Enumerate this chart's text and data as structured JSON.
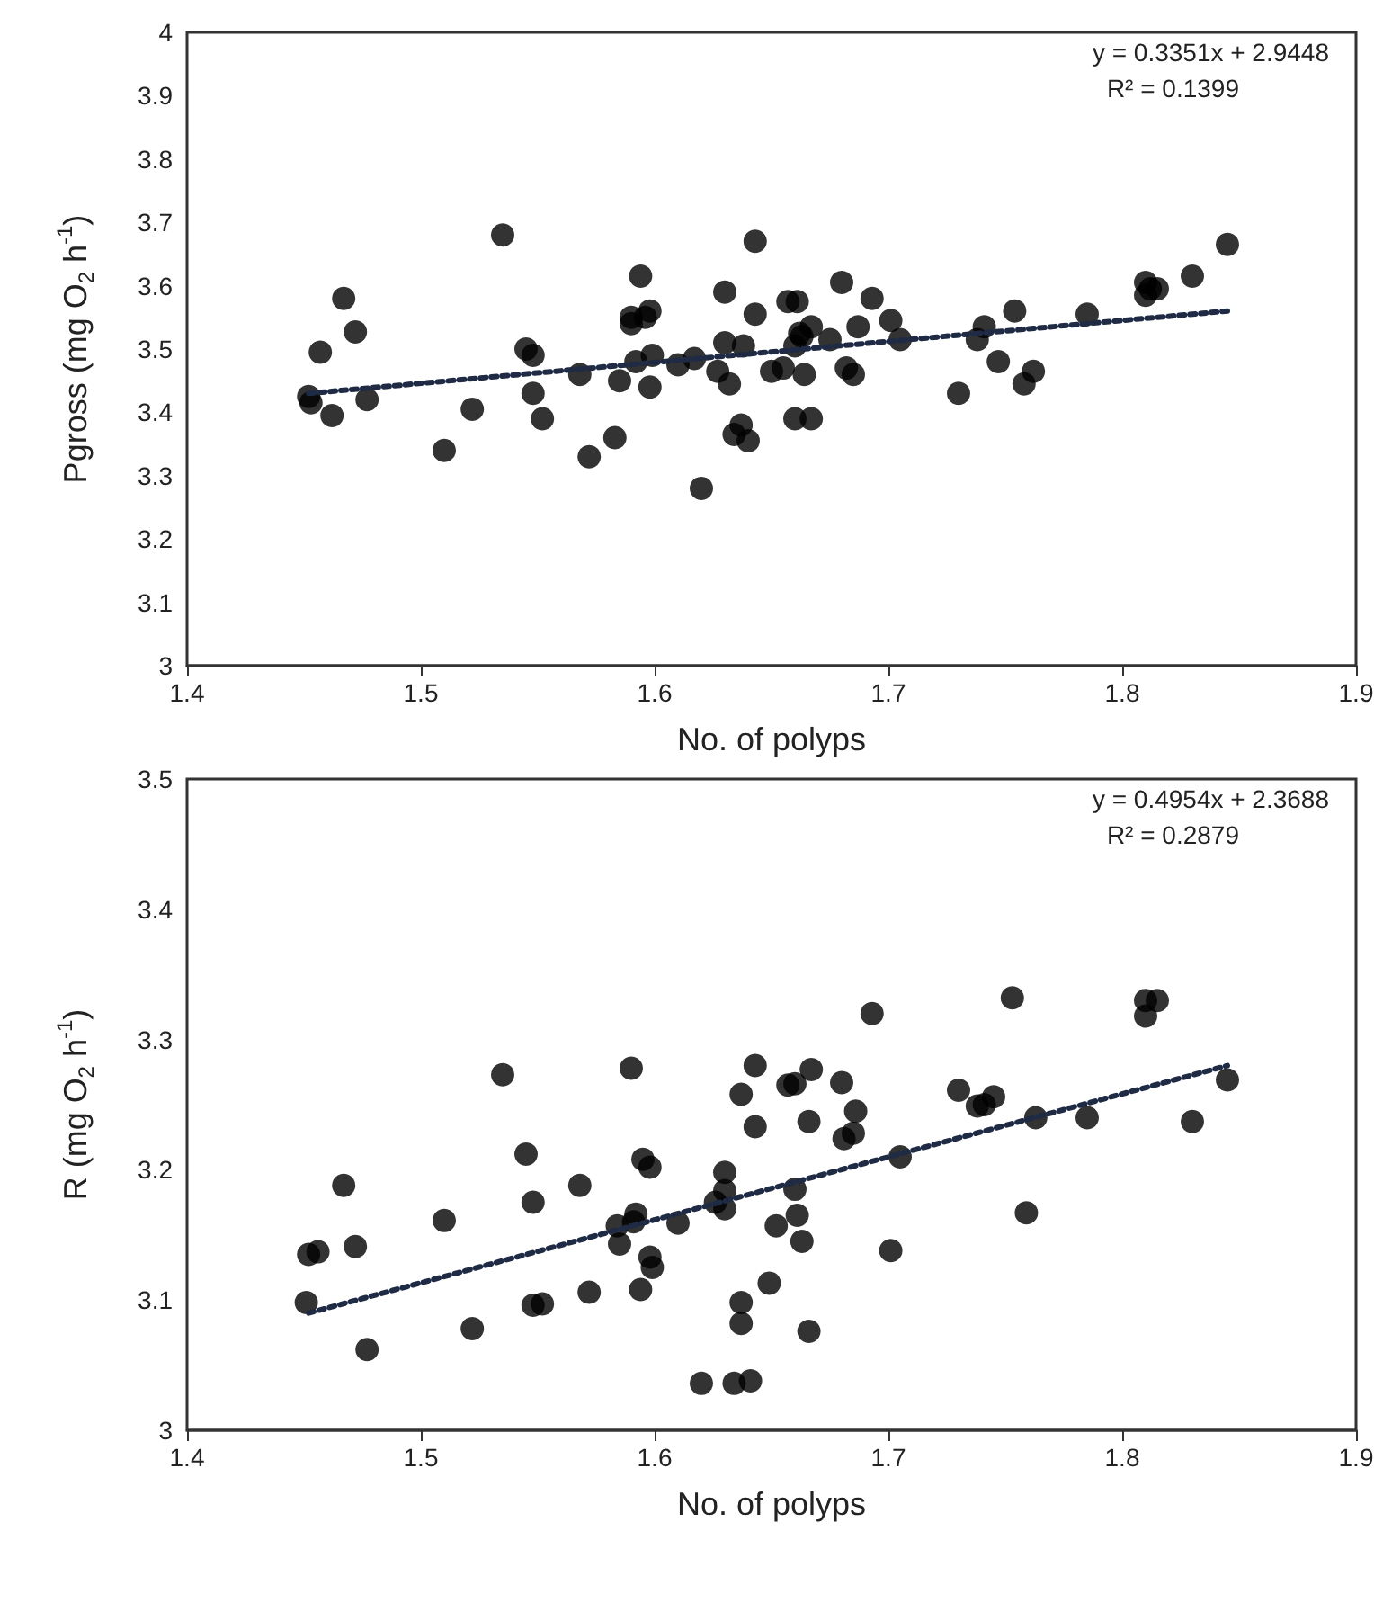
{
  "chart_data": [
    {
      "type": "scatter",
      "xlabel": "No. of polyps",
      "ylabel": "Pgross (mg O$_{2}$ h$^{-1}$)",
      "xlim": [
        1.4,
        1.9
      ],
      "xticks": [
        1.4,
        1.5,
        1.6,
        1.7,
        1.8,
        1.9
      ],
      "ylim": [
        3,
        4
      ],
      "yticks": [
        3,
        3.1,
        3.2,
        3.3,
        3.4,
        3.5,
        3.6,
        3.7,
        3.8,
        3.9,
        4
      ],
      "grid": false,
      "annotations": [
        "y = 0.3351x + 2.9448",
        "R² = 0.1399"
      ],
      "series": [
        {
          "marker": "circle",
          "color": "#000000",
          "x": [
            1.452,
            1.453,
            1.457,
            1.462,
            1.467,
            1.472,
            1.477,
            1.51,
            1.522,
            1.535,
            1.545,
            1.548,
            1.548,
            1.552,
            1.568,
            1.572,
            1.583,
            1.585,
            1.59,
            1.59,
            1.592,
            1.594,
            1.596,
            1.598,
            1.598,
            1.599,
            1.61,
            1.617,
            1.62,
            1.627,
            1.63,
            1.63,
            1.632,
            1.634,
            1.637,
            1.638,
            1.64,
            1.643,
            1.643,
            1.65,
            1.655,
            1.657,
            1.66,
            1.66,
            1.661,
            1.662,
            1.663,
            1.664,
            1.667,
            1.667,
            1.675,
            1.68,
            1.682,
            1.685,
            1.687,
            1.693,
            1.701,
            1.705,
            1.73,
            1.738,
            1.741,
            1.747,
            1.754,
            1.758,
            1.762,
            1.785,
            1.81,
            1.81,
            1.812,
            1.815,
            1.83,
            1.845
          ],
          "values": [
            3.425,
            3.415,
            3.495,
            3.395,
            3.58,
            3.527,
            3.42,
            3.34,
            3.405,
            3.68,
            3.5,
            3.49,
            3.43,
            3.39,
            3.46,
            3.33,
            3.36,
            3.45,
            3.55,
            3.54,
            3.48,
            3.615,
            3.55,
            3.56,
            3.44,
            3.49,
            3.475,
            3.485,
            3.28,
            3.465,
            3.59,
            3.51,
            3.445,
            3.365,
            3.38,
            3.505,
            3.355,
            3.67,
            3.555,
            3.465,
            3.47,
            3.575,
            3.505,
            3.39,
            3.575,
            3.525,
            3.52,
            3.46,
            3.39,
            3.535,
            3.515,
            3.605,
            3.47,
            3.46,
            3.535,
            3.58,
            3.545,
            3.515,
            3.43,
            3.515,
            3.535,
            3.48,
            3.56,
            3.445,
            3.465,
            3.555,
            3.605,
            3.585,
            3.595,
            3.595,
            3.615,
            3.665
          ]
        },
        {
          "type": "line",
          "marker": "none",
          "line_style": "dotted",
          "color": "#1f2a44",
          "x": [
            1.452,
            1.845
          ],
          "values": [
            3.43,
            3.56
          ]
        }
      ]
    },
    {
      "type": "scatter",
      "xlabel": "No. of polyps",
      "ylabel": "R (mg O$_{2}$ h$^{-1}$)",
      "xlim": [
        1.4,
        1.9
      ],
      "xticks": [
        1.4,
        1.5,
        1.6,
        1.7,
        1.8,
        1.9
      ],
      "ylim": [
        3,
        3.5
      ],
      "yticks": [
        3,
        3.1,
        3.2,
        3.3,
        3.4,
        3.5
      ],
      "grid": false,
      "annotations": [
        "y = 0.4954x + 2.3688",
        "R² = 0.2879"
      ],
      "series": [
        {
          "marker": "circle",
          "color": "#000000",
          "x": [
            1.452,
            1.456,
            1.451,
            1.467,
            1.472,
            1.477,
            1.51,
            1.522,
            1.535,
            1.545,
            1.548,
            1.548,
            1.552,
            1.568,
            1.572,
            1.584,
            1.585,
            1.59,
            1.591,
            1.592,
            1.594,
            1.595,
            1.598,
            1.598,
            1.599,
            1.61,
            1.62,
            1.626,
            1.63,
            1.63,
            1.63,
            1.634,
            1.637,
            1.637,
            1.637,
            1.641,
            1.643,
            1.643,
            1.649,
            1.652,
            1.657,
            1.66,
            1.66,
            1.661,
            1.663,
            1.666,
            1.666,
            1.667,
            1.68,
            1.681,
            1.685,
            1.686,
            1.693,
            1.701,
            1.705,
            1.73,
            1.738,
            1.741,
            1.745,
            1.753,
            1.759,
            1.763,
            1.785,
            1.81,
            1.81,
            1.815,
            1.83,
            1.845
          ],
          "values": [
            3.135,
            3.137,
            3.098,
            3.188,
            3.141,
            3.062,
            3.161,
            3.078,
            3.273,
            3.212,
            3.175,
            3.096,
            3.097,
            3.188,
            3.106,
            3.157,
            3.143,
            3.278,
            3.16,
            3.166,
            3.108,
            3.208,
            3.202,
            3.133,
            3.125,
            3.159,
            3.036,
            3.175,
            3.198,
            3.184,
            3.17,
            3.036,
            3.098,
            3.082,
            3.258,
            3.038,
            3.28,
            3.233,
            3.113,
            3.157,
            3.265,
            3.266,
            3.185,
            3.165,
            3.145,
            3.076,
            3.237,
            3.277,
            3.267,
            3.224,
            3.228,
            3.245,
            3.32,
            3.138,
            3.21,
            3.261,
            3.249,
            3.25,
            3.256,
            3.332,
            3.167,
            3.24,
            3.24,
            3.33,
            3.318,
            3.33,
            3.237,
            3.269
          ]
        },
        {
          "type": "line",
          "marker": "none",
          "line_style": "dotted",
          "color": "#1f2a44",
          "x": [
            1.452,
            1.845
          ],
          "values": [
            3.09,
            3.28
          ]
        }
      ]
    }
  ]
}
